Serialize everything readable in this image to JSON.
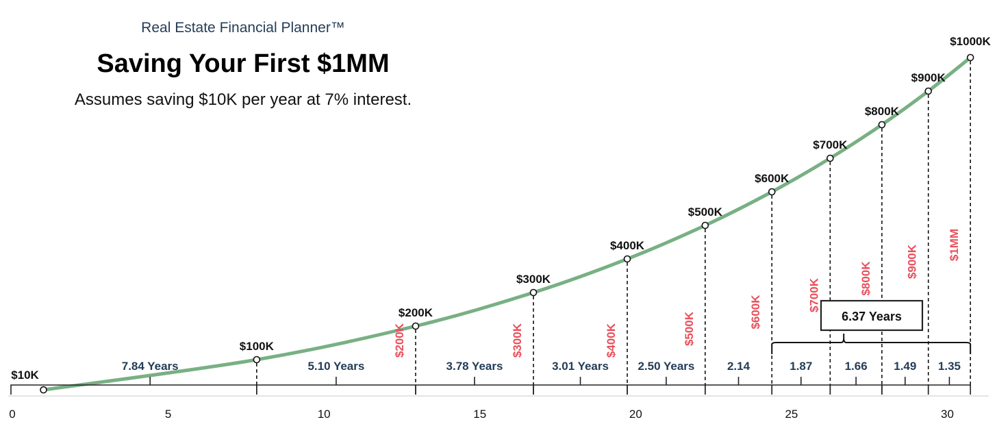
{
  "header": {
    "brand": "Real Estate Financial Planner™",
    "title": "Saving Your First $1MM",
    "subtitle": "Assumes saving $10K per year at 7% interest."
  },
  "colors": {
    "curve": "#78b084",
    "milestone_label": "#111111",
    "interval_label": "#233d57",
    "rotated_label": "#e8505b",
    "axis": "#222222"
  },
  "chart_data": {
    "type": "line",
    "title": "Saving Your First $1MM",
    "xlabel": "",
    "ylabel": "",
    "xlim": [
      0,
      31
    ],
    "ylim": [
      0,
      1000
    ],
    "x_ticks": [
      0,
      5,
      10,
      15,
      20,
      25,
      30
    ],
    "grid": false,
    "series": [
      {
        "points": [
          {
            "x": 1.0,
            "y": 10,
            "label": "$10K"
          },
          {
            "x": 7.84,
            "y": 100,
            "label": "$100K"
          },
          {
            "x": 12.94,
            "y": 200,
            "label": "$200K"
          },
          {
            "x": 16.72,
            "y": 300,
            "label": "$300K"
          },
          {
            "x": 19.73,
            "y": 400,
            "label": "$400K"
          },
          {
            "x": 22.23,
            "y": 500,
            "label": "$500K"
          },
          {
            "x": 24.37,
            "y": 600,
            "label": "$600K"
          },
          {
            "x": 26.24,
            "y": 700,
            "label": "$700K"
          },
          {
            "x": 27.9,
            "y": 800,
            "label": "$800K"
          },
          {
            "x": 29.39,
            "y": 900,
            "label": "$900K"
          },
          {
            "x": 30.74,
            "y": 1000,
            "label": "$1000K"
          }
        ]
      }
    ],
    "interval_labels": [
      {
        "from": 1.0,
        "to": 7.84,
        "text": "7.84 Years"
      },
      {
        "from": 7.84,
        "to": 12.94,
        "text": "5.10 Years"
      },
      {
        "from": 12.94,
        "to": 16.72,
        "text": "3.78 Years"
      },
      {
        "from": 16.72,
        "to": 19.73,
        "text": "3.01 Years"
      },
      {
        "from": 19.73,
        "to": 22.23,
        "text": "2.50 Years"
      },
      {
        "from": 22.23,
        "to": 24.37,
        "text": "2.14"
      },
      {
        "from": 24.37,
        "to": 26.24,
        "text": "1.87"
      },
      {
        "from": 26.24,
        "to": 27.9,
        "text": "1.66"
      },
      {
        "from": 27.9,
        "to": 29.39,
        "text": "1.49"
      },
      {
        "from": 29.39,
        "to": 30.74,
        "text": "1.35"
      }
    ],
    "rotated_labels": [
      "$200K",
      "$300K",
      "$400K",
      "$500K",
      "$600K",
      "$700K",
      "$800K",
      "$900K",
      "$1MM"
    ],
    "annotation": {
      "from": 24.37,
      "to": 30.74,
      "text": "6.37 Years"
    }
  }
}
